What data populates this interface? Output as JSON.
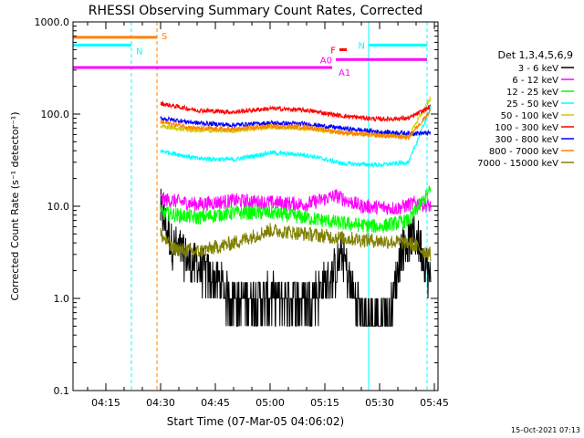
{
  "chart_data": {
    "type": "line",
    "title": "RHESSI Observing Summary Count Rates, Corrected",
    "xlabel": "Start Time (07-Mar-05 04:06:02)",
    "ylabel": "Corrected Count Rate (s⁻¹ detector⁻¹)",
    "ylim": [
      0.1,
      1000
    ],
    "yscale": "log",
    "xlim": [
      "04:06",
      "05:46"
    ],
    "x_ticks": [
      "04:15",
      "04:30",
      "04:45",
      "05:00",
      "05:15",
      "05:30",
      "05:45"
    ],
    "y_ticks": [
      "0.1",
      "1.0",
      "10.0",
      "100.0",
      "1000.0"
    ],
    "legend_title": "Det 1,3,4,5,6,9",
    "legend_position": "right",
    "footer_timestamp": "15-Oct-2021 07:13",
    "data_start": "04:30",
    "data_end": "05:44",
    "series": [
      {
        "name": "3 - 6 keV",
        "color": "#000000",
        "values": [
          {
            "x": "04:30",
            "y": 9.0
          },
          {
            "x": "04:33",
            "y": 4.0
          },
          {
            "x": "04:38",
            "y": 2.5
          },
          {
            "x": "04:42",
            "y": 2.0
          },
          {
            "x": "04:50",
            "y": 1.0
          },
          {
            "x": "05:00",
            "y": 1.0
          },
          {
            "x": "05:10",
            "y": 1.0
          },
          {
            "x": "05:16",
            "y": 1.5
          },
          {
            "x": "05:20",
            "y": 3.0
          },
          {
            "x": "05:23",
            "y": 1.0
          },
          {
            "x": "05:27",
            "y": 0.6
          },
          {
            "x": "05:33",
            "y": 0.7
          },
          {
            "x": "05:36",
            "y": 3.5
          },
          {
            "x": "05:40",
            "y": 5.0
          },
          {
            "x": "05:44",
            "y": 1.6
          }
        ]
      },
      {
        "name": "6 - 12 keV",
        "color": "#ff00ff",
        "values": [
          {
            "x": "04:30",
            "y": 12.0
          },
          {
            "x": "04:40",
            "y": 10.5
          },
          {
            "x": "04:50",
            "y": 11.5
          },
          {
            "x": "05:00",
            "y": 11.0
          },
          {
            "x": "05:10",
            "y": 10.5
          },
          {
            "x": "05:18",
            "y": 13.0
          },
          {
            "x": "05:25",
            "y": 10.0
          },
          {
            "x": "05:35",
            "y": 9.5
          },
          {
            "x": "05:40",
            "y": 11.0
          },
          {
            "x": "05:44",
            "y": 10.0
          }
        ]
      },
      {
        "name": "12 - 25 keV",
        "color": "#00ff00",
        "values": [
          {
            "x": "04:30",
            "y": 8.5
          },
          {
            "x": "04:40",
            "y": 7.5
          },
          {
            "x": "04:50",
            "y": 8.5
          },
          {
            "x": "05:00",
            "y": 8.5
          },
          {
            "x": "05:10",
            "y": 7.5
          },
          {
            "x": "05:20",
            "y": 6.5
          },
          {
            "x": "05:30",
            "y": 6.0
          },
          {
            "x": "05:38",
            "y": 7.0
          },
          {
            "x": "05:44",
            "y": 15.0
          }
        ]
      },
      {
        "name": "25 - 50 keV",
        "color": "#00ffff",
        "values": [
          {
            "x": "04:30",
            "y": 40.0
          },
          {
            "x": "04:40",
            "y": 33.0
          },
          {
            "x": "04:50",
            "y": 32.0
          },
          {
            "x": "05:00",
            "y": 38.0
          },
          {
            "x": "05:10",
            "y": 36.0
          },
          {
            "x": "05:20",
            "y": 29.0
          },
          {
            "x": "05:30",
            "y": 28.0
          },
          {
            "x": "05:38",
            "y": 30.0
          },
          {
            "x": "05:44",
            "y": 120.0
          }
        ]
      },
      {
        "name": "50 - 100 keV",
        "color": "#cccc00",
        "values": [
          {
            "x": "04:30",
            "y": 73.0
          },
          {
            "x": "04:40",
            "y": 66.0
          },
          {
            "x": "04:50",
            "y": 66.0
          },
          {
            "x": "05:00",
            "y": 72.0
          },
          {
            "x": "05:10",
            "y": 70.0
          },
          {
            "x": "05:20",
            "y": 62.0
          },
          {
            "x": "05:30",
            "y": 60.0
          },
          {
            "x": "05:38",
            "y": 58.0
          },
          {
            "x": "05:44",
            "y": 150.0
          }
        ]
      },
      {
        "name": "100 - 300 keV",
        "color": "#ff0000",
        "values": [
          {
            "x": "04:30",
            "y": 130.0
          },
          {
            "x": "04:40",
            "y": 110.0
          },
          {
            "x": "04:50",
            "y": 105.0
          },
          {
            "x": "05:00",
            "y": 115.0
          },
          {
            "x": "05:10",
            "y": 110.0
          },
          {
            "x": "05:20",
            "y": 95.0
          },
          {
            "x": "05:30",
            "y": 88.0
          },
          {
            "x": "05:38",
            "y": 90.0
          },
          {
            "x": "05:44",
            "y": 120.0
          }
        ]
      },
      {
        "name": "300 - 800 keV",
        "color": "#0000ff",
        "values": [
          {
            "x": "04:30",
            "y": 90.0
          },
          {
            "x": "04:40",
            "y": 80.0
          },
          {
            "x": "04:50",
            "y": 76.0
          },
          {
            "x": "05:00",
            "y": 80.0
          },
          {
            "x": "05:10",
            "y": 78.0
          },
          {
            "x": "05:20",
            "y": 70.0
          },
          {
            "x": "05:30",
            "y": 64.0
          },
          {
            "x": "05:38",
            "y": 62.0
          },
          {
            "x": "05:44",
            "y": 62.0
          }
        ]
      },
      {
        "name": "800 - 7000 keV",
        "color": "#ff8000",
        "values": [
          {
            "x": "04:30",
            "y": 82.0
          },
          {
            "x": "04:40",
            "y": 70.0
          },
          {
            "x": "04:50",
            "y": 68.0
          },
          {
            "x": "05:00",
            "y": 74.0
          },
          {
            "x": "05:10",
            "y": 72.0
          },
          {
            "x": "05:20",
            "y": 63.0
          },
          {
            "x": "05:30",
            "y": 58.0
          },
          {
            "x": "05:38",
            "y": 56.0
          },
          {
            "x": "05:44",
            "y": 110.0
          }
        ]
      },
      {
        "name": "7000 - 15000 keV",
        "color": "#808000",
        "values": [
          {
            "x": "04:30",
            "y": 5.0
          },
          {
            "x": "04:33",
            "y": 3.5
          },
          {
            "x": "04:40",
            "y": 3.2
          },
          {
            "x": "04:50",
            "y": 4.0
          },
          {
            "x": "05:00",
            "y": 5.5
          },
          {
            "x": "05:10",
            "y": 5.0
          },
          {
            "x": "05:20",
            "y": 4.5
          },
          {
            "x": "05:30",
            "y": 4.2
          },
          {
            "x": "05:38",
            "y": 4.0
          },
          {
            "x": "05:44",
            "y": 3.0
          }
        ]
      }
    ],
    "flag_bars": [
      {
        "label": "S",
        "color": "#ff8000",
        "start": "04:06",
        "end": "04:29",
        "level": 680
      },
      {
        "label": "N",
        "color": "#00ffff",
        "start": "04:06",
        "end": "04:22",
        "level": 560
      },
      {
        "label": "N",
        "color": "#00ffff",
        "start": "05:27",
        "end": "05:43",
        "level": 560
      },
      {
        "label": "F",
        "color": "#ff0000",
        "start": "05:19",
        "end": "05:21",
        "level": 500
      },
      {
        "label": "A0",
        "color": "#ff00ff",
        "start": "05:18",
        "end": "05:43",
        "level": 390
      },
      {
        "label": "A1",
        "color": "#ff00ff",
        "start": "04:06",
        "end": "05:17",
        "level": 320
      }
    ],
    "vertical_markers": [
      {
        "x": "04:22",
        "color": "#00ffff",
        "dashed": true
      },
      {
        "x": "04:29",
        "color": "#ff8000",
        "dashed": true
      },
      {
        "x": "05:27",
        "color": "#00ffff",
        "dashed": false
      },
      {
        "x": "05:43",
        "color": "#00ffff",
        "dashed": true
      }
    ]
  }
}
